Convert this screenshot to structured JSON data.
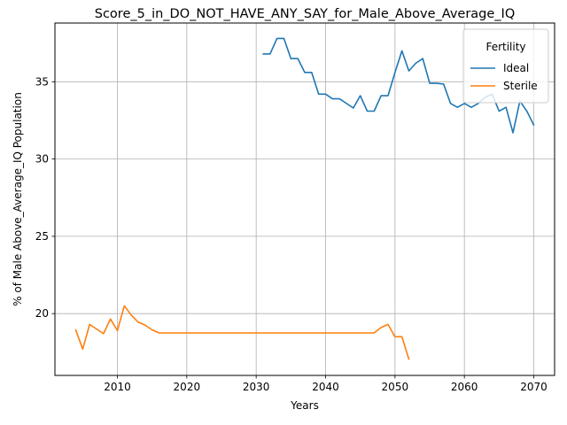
{
  "chart_data": {
    "type": "line",
    "title": "Score_5_in_DO_NOT_HAVE_ANY_SAY_for_Male_Above_Average_IQ",
    "xlabel": "Years",
    "ylabel": "% of Male Above_Average_IQ Population",
    "xlim": [
      2001,
      2073
    ],
    "ylim": [
      16.0,
      38.8
    ],
    "xticks": [
      2010,
      2020,
      2030,
      2040,
      2050,
      2060,
      2070
    ],
    "yticks": [
      20,
      25,
      30,
      35
    ],
    "grid": true,
    "legend": {
      "title": "Fertility",
      "placement": "top-right"
    },
    "series": [
      {
        "name": "Ideal",
        "color": "#1f77b4",
        "x": [
          2031,
          2032,
          2033,
          2034,
          2035,
          2036,
          2037,
          2038,
          2039,
          2040,
          2041,
          2042,
          2043,
          2044,
          2045,
          2046,
          2047,
          2048,
          2049,
          2050,
          2051,
          2052,
          2053,
          2054,
          2055,
          2056,
          2057,
          2058,
          2059,
          2060,
          2061,
          2062,
          2063,
          2064,
          2065,
          2066,
          2067,
          2068,
          2069,
          2070
        ],
        "y": [
          36.8,
          36.8,
          37.8,
          37.8,
          36.5,
          36.5,
          35.6,
          35.6,
          34.2,
          34.2,
          33.9,
          33.9,
          33.6,
          33.3,
          34.1,
          33.1,
          33.1,
          34.1,
          34.1,
          35.6,
          37.0,
          35.7,
          36.2,
          36.5,
          34.9,
          34.9,
          34.85,
          33.6,
          33.35,
          33.6,
          33.35,
          33.6,
          34.0,
          34.2,
          33.1,
          33.35,
          31.7,
          33.75,
          33.1,
          32.2
        ]
      },
      {
        "name": "Sterile",
        "color": "#ff7f0e",
        "x": [
          2004,
          2005,
          2006,
          2007,
          2008,
          2009,
          2010,
          2011,
          2012,
          2013,
          2014,
          2015,
          2016,
          2017,
          2018,
          2019,
          2020,
          2021,
          2022,
          2023,
          2024,
          2025,
          2026,
          2027,
          2028,
          2029,
          2030,
          2031,
          2032,
          2033,
          2034,
          2035,
          2036,
          2037,
          2038,
          2039,
          2040,
          2041,
          2042,
          2043,
          2044,
          2045,
          2046,
          2047,
          2048,
          2049,
          2050,
          2051,
          2052
        ],
        "y": [
          18.95,
          17.7,
          19.3,
          19.0,
          18.7,
          19.65,
          18.9,
          20.5,
          19.9,
          19.45,
          19.25,
          18.95,
          18.75,
          18.75,
          18.75,
          18.75,
          18.75,
          18.75,
          18.75,
          18.75,
          18.75,
          18.75,
          18.75,
          18.75,
          18.75,
          18.75,
          18.75,
          18.75,
          18.75,
          18.75,
          18.75,
          18.75,
          18.75,
          18.75,
          18.75,
          18.75,
          18.75,
          18.75,
          18.75,
          18.75,
          18.75,
          18.75,
          18.75,
          18.75,
          19.1,
          19.3,
          18.5,
          18.5,
          17.05
        ]
      }
    ]
  }
}
